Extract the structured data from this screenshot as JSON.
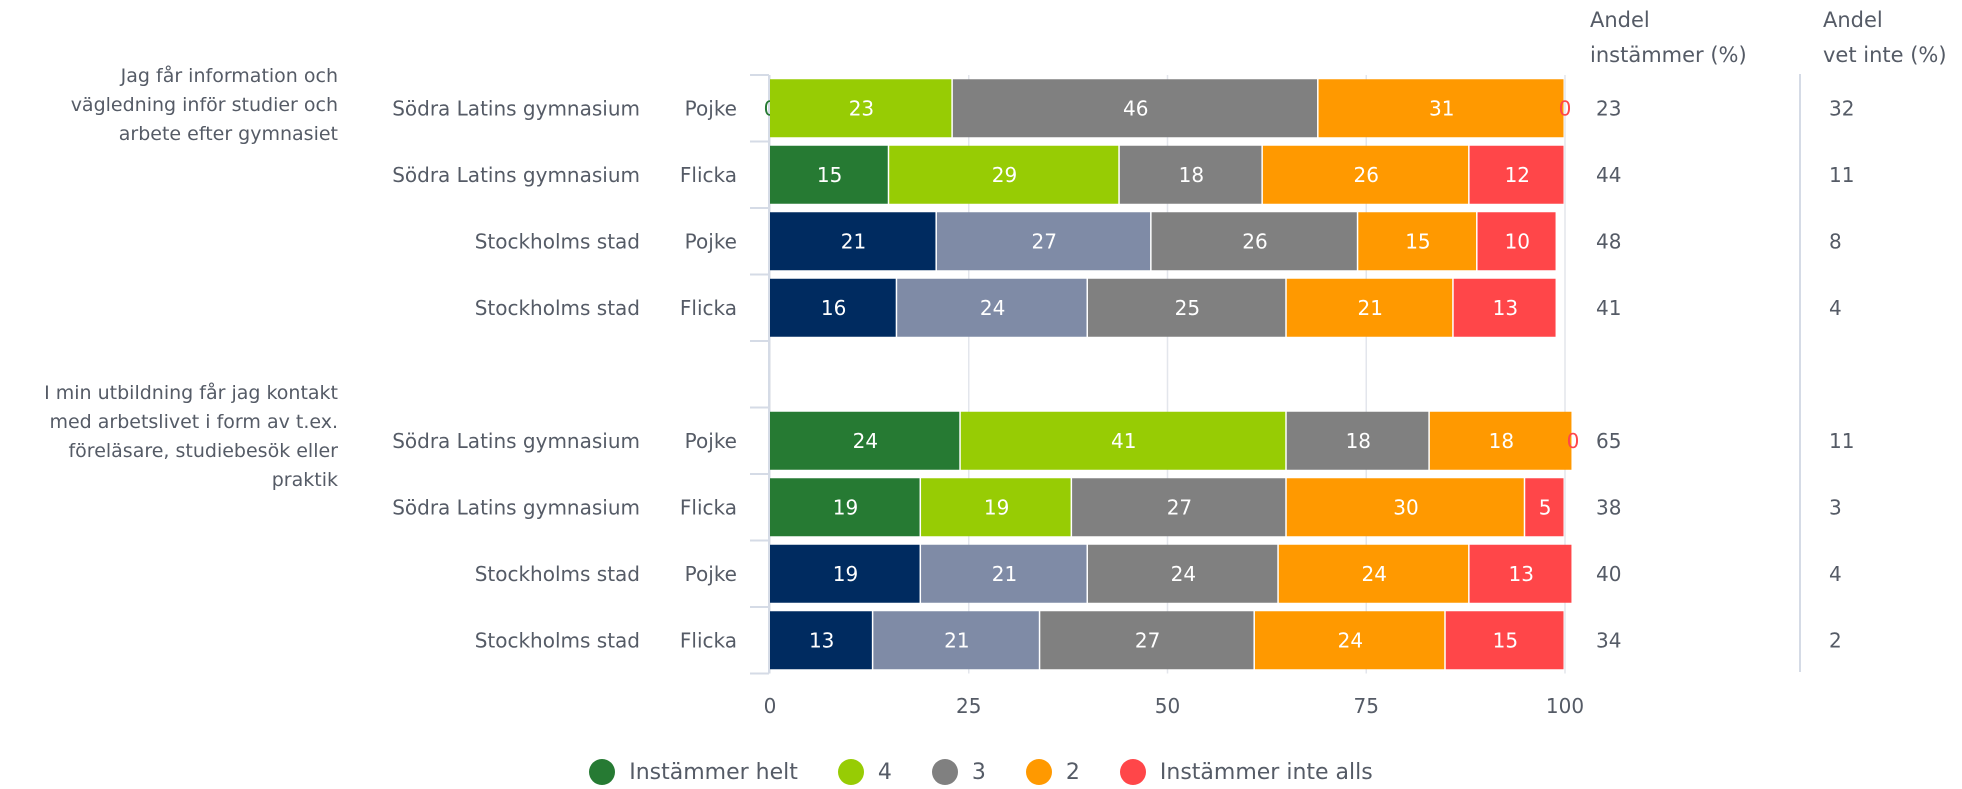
{
  "chart_data": {
    "type": "bar",
    "stacked": true,
    "orientation": "horizontal",
    "xlim": [
      0,
      100
    ],
    "x_ticks": [
      "0",
      "25",
      "50",
      "75",
      "100"
    ],
    "grid": true,
    "legend_position": "bottom",
    "column_headers": {
      "instammer": [
        "Andel",
        "instämmer (%)"
      ],
      "vet_inte": [
        "Andel",
        "vet inte (%)"
      ]
    },
    "groups": [
      {
        "question": [
          "Jag får information och",
          "vägledning inför studier och",
          "arbete efter gymnasiet"
        ],
        "rows": [
          {
            "school": "Södra Latins gymnasium",
            "gender": "Pojke",
            "scheme": "school",
            "values": [
              0,
              23,
              46,
              31,
              0
            ],
            "labels": [
              "0",
              "23",
              "46",
              "31",
              "0"
            ],
            "andel_instammer": "23",
            "andel_vet_inte": "32"
          },
          {
            "school": "Södra Latins gymnasium",
            "gender": "Flicka",
            "scheme": "school",
            "values": [
              15,
              29,
              18,
              26,
              12
            ],
            "labels": [
              "15",
              "29",
              "18",
              "26",
              "12"
            ],
            "andel_instammer": "44",
            "andel_vet_inte": "11"
          },
          {
            "school": "Stockholms stad",
            "gender": "Pojke",
            "scheme": "city",
            "values": [
              21,
              27,
              26,
              15,
              10
            ],
            "labels": [
              "21",
              "27",
              "26",
              "15",
              "10"
            ],
            "andel_instammer": "48",
            "andel_vet_inte": "8"
          },
          {
            "school": "Stockholms stad",
            "gender": "Flicka",
            "scheme": "city",
            "values": [
              16,
              24,
              25,
              21,
              13
            ],
            "labels": [
              "16",
              "24",
              "25",
              "21",
              "13"
            ],
            "andel_instammer": "41",
            "andel_vet_inte": "4"
          }
        ]
      },
      {
        "question": [
          "I min utbildning får jag kontakt",
          "med arbetslivet i form av t.ex.",
          "föreläsare, studiebesök eller",
          "praktik"
        ],
        "rows": [
          {
            "school": "Södra Latins gymnasium",
            "gender": "Pojke",
            "scheme": "school",
            "values": [
              24,
              41,
              18,
              18,
              0
            ],
            "labels": [
              "24",
              "41",
              "18",
              "18",
              "0"
            ],
            "andel_instammer": "65",
            "andel_vet_inte": "11"
          },
          {
            "school": "Södra Latins gymnasium",
            "gender": "Flicka",
            "scheme": "school",
            "values": [
              19,
              19,
              27,
              30,
              5
            ],
            "labels": [
              "19",
              "19",
              "27",
              "30",
              "5"
            ],
            "andel_instammer": "38",
            "andel_vet_inte": "3"
          },
          {
            "school": "Stockholms stad",
            "gender": "Pojke",
            "scheme": "city",
            "values": [
              19,
              21,
              24,
              24,
              13
            ],
            "labels": [
              "19",
              "21",
              "24",
              "24",
              "13"
            ],
            "andel_instammer": "40",
            "andel_vet_inte": "4"
          },
          {
            "school": "Stockholms stad",
            "gender": "Flicka",
            "scheme": "city",
            "values": [
              13,
              21,
              27,
              24,
              15
            ],
            "labels": [
              "13",
              "21",
              "27",
              "24",
              "15"
            ],
            "andel_instammer": "34",
            "andel_vet_inte": "2"
          }
        ]
      }
    ],
    "series_names": [
      "Instämmer helt",
      "4",
      "3",
      "2",
      "Instämmer inte alls"
    ],
    "colors": {
      "school": [
        "#267a33",
        "#97cc04",
        "#808080",
        "#ff9900",
        "#ff4649"
      ],
      "city": [
        "#002b60",
        "#7f8ba6",
        "#808080",
        "#ff9900",
        "#ff4649"
      ]
    }
  },
  "legend": [
    {
      "label": "Instämmer helt",
      "color": "#267a33"
    },
    {
      "label": "4",
      "color": "#97cc04"
    },
    {
      "label": "3",
      "color": "#808080"
    },
    {
      "label": "2",
      "color": "#ff9900"
    },
    {
      "label": "Instämmer inte alls",
      "color": "#ff4649"
    }
  ]
}
